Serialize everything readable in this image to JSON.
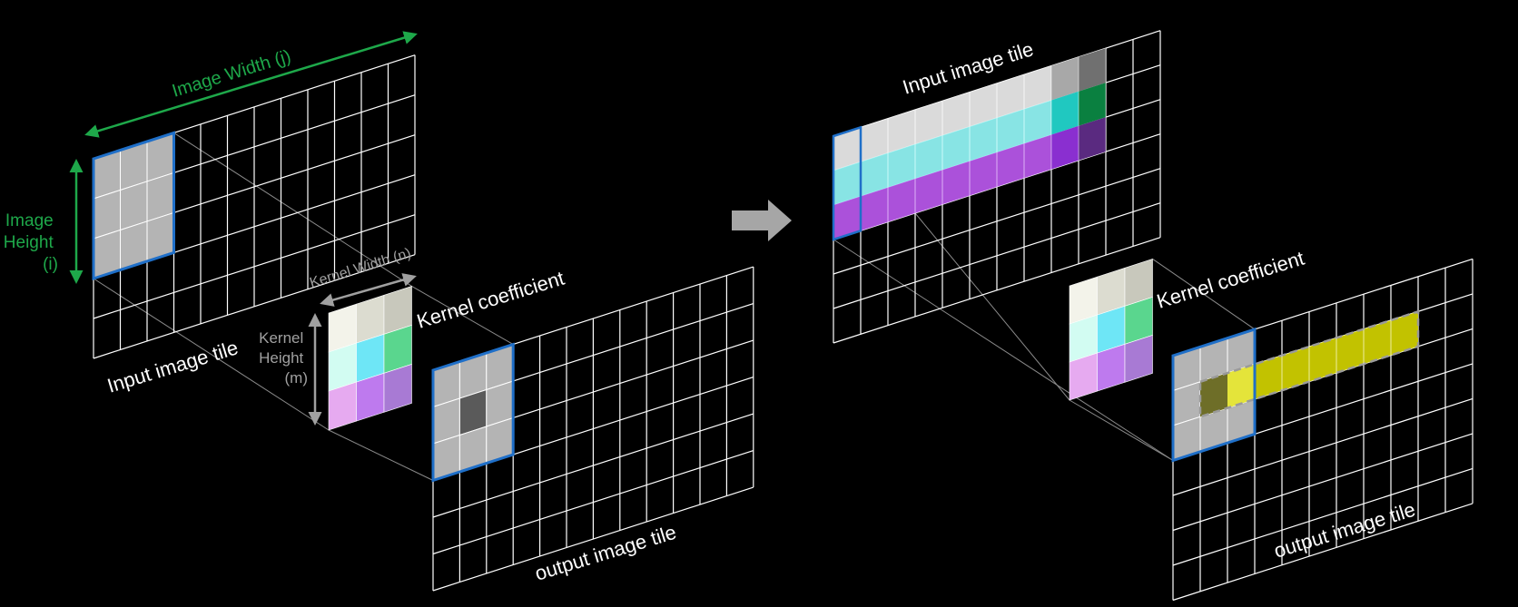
{
  "left_panel": {
    "image_width_label": "Image Width (j)",
    "image_height_label": [
      "Image",
      "Height",
      "(i)"
    ],
    "input_tile_label": "Input image tile",
    "kernel_width_label": "Kernel Width (n)",
    "kernel_height_label": [
      "Kernel",
      "Height",
      "(m)"
    ],
    "kernel_coefficient_label": "Kernel coefficient",
    "output_tile_label": "output image tile"
  },
  "right_panel": {
    "input_tile_label": "Input image tile",
    "kernel_coefficient_label": "Kernel coefficient",
    "output_tile_label": "output image tile"
  },
  "colors": {
    "background": "#000000",
    "grid_line": "#ffffff",
    "dimension_green": "#1ea84a",
    "dimension_gray": "#a0a0a0",
    "highlight_blue": "#1f6fc8",
    "window_fill": "#b4b4b4",
    "row_white": "#e6e6e6",
    "row_cyan": "#8ff0f0",
    "row_magenta": "#b455e6",
    "output_yellow": "#cccc00",
    "arrow_gray": "#a6a6a6"
  },
  "kernel_colors": [
    [
      "#f3f3ea",
      "#dcdcd0",
      "#c8c8bc"
    ],
    [
      "#d2fcf2",
      "#6ee6f6",
      "#5ad68e"
    ],
    [
      "#e6aaf0",
      "#be7aee",
      "#a87ad4"
    ]
  ]
}
